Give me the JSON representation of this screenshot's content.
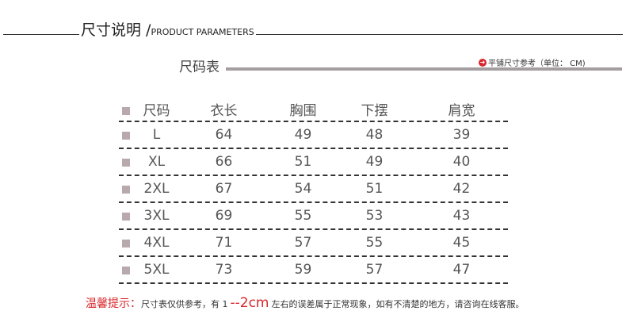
{
  "header": {
    "title_cn": "尺寸说明 /",
    "title_en": "PRODUCT PARAMETERS"
  },
  "section": {
    "title": "尺码表",
    "unit_note": "平铺尺寸参考（单位： CM)",
    "unit_icon": "arrow-circle-right-icon",
    "accent": "#d9262b"
  },
  "table": {
    "columns": [
      "尺码",
      "衣长",
      "胸围",
      "下摆",
      "肩宽"
    ],
    "rows": [
      [
        "L",
        "64",
        "49",
        "48",
        "39"
      ],
      [
        "XL",
        "66",
        "51",
        "49",
        "40"
      ],
      [
        "2XL",
        "67",
        "54",
        "51",
        "42"
      ],
      [
        "3XL",
        "69",
        "55",
        "53",
        "43"
      ],
      [
        "4XL",
        "71",
        "57",
        "55",
        "45"
      ],
      [
        "5XL",
        "73",
        "59",
        "57",
        "47"
      ]
    ]
  },
  "note": {
    "label": "温馨提示：",
    "text1": "尺寸表仅供参考，有 1",
    "range": "--2cm",
    "text2": "左右的误差属于正常现象，如有不清楚的地方，请咨询在线客服。"
  }
}
